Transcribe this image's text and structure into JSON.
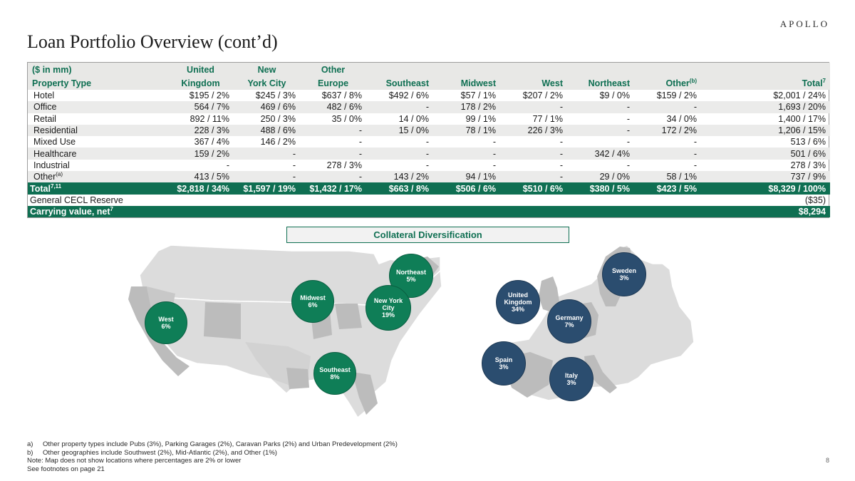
{
  "header": {
    "brand": "APOLLO",
    "title": "Loan Portfolio Overview (cont’d)"
  },
  "table": {
    "headers_top": [
      "($ in mm)",
      "United",
      "New",
      "Other",
      "",
      "",
      "",
      "",
      "",
      ""
    ],
    "headers_bottom": [
      "Property Type",
      "Kingdom",
      "York City",
      "Europe",
      "Southeast",
      "Midwest",
      "West",
      "Northeast",
      "Other",
      "Total"
    ],
    "header_other_sup": "(b)",
    "header_total_sup": "7",
    "rows": [
      {
        "label": "Hotel",
        "sup": "",
        "cells": [
          "$195  / 2%",
          "$245  / 3%",
          "$637  / 8%",
          "$492  / 6%",
          "$57  / 1%",
          "$207  / 2%",
          "$9  / 0%",
          "$159  / 2%",
          "$2,001  / 24%"
        ]
      },
      {
        "label": "Office",
        "sup": "",
        "cells": [
          "564  / 7%",
          "469  / 6%",
          "482  / 6%",
          "-",
          "178  / 2%",
          "-",
          "-",
          "-",
          "1,693  / 20%"
        ]
      },
      {
        "label": "Retail",
        "sup": "",
        "cells": [
          "892  / 11%",
          "250  / 3%",
          "35  / 0%",
          "14  / 0%",
          "99  / 1%",
          "77  / 1%",
          "-",
          "34  / 0%",
          "1,400  / 17%"
        ]
      },
      {
        "label": "Residential",
        "sup": "",
        "cells": [
          "228  / 3%",
          "488  / 6%",
          "-",
          "15  / 0%",
          "78  / 1%",
          "226  / 3%",
          "-",
          "172  / 2%",
          "1,206  / 15%"
        ]
      },
      {
        "label": "Mixed Use",
        "sup": "",
        "cells": [
          "367  / 4%",
          "146  / 2%",
          "-",
          "-",
          "-",
          "-",
          "-",
          "-",
          "513  / 6%"
        ]
      },
      {
        "label": "Healthcare",
        "sup": "",
        "cells": [
          "159  / 2%",
          "-",
          "-",
          "-",
          "-",
          "-",
          "342  / 4%",
          "-",
          "501  / 6%"
        ]
      },
      {
        "label": "Industrial",
        "sup": "",
        "cells": [
          "-",
          "-",
          "278  / 3%",
          "-",
          "-",
          "-",
          "-",
          "-",
          "278  / 3%"
        ]
      },
      {
        "label": "Other",
        "sup": "(a)",
        "cells": [
          "413  / 5%",
          "-",
          "-",
          "143  / 2%",
          "94  / 1%",
          "-",
          "29  / 0%",
          "58  / 1%",
          "737  / 9%"
        ]
      }
    ],
    "total": {
      "label": "Total",
      "sup": "7,11",
      "cells": [
        "$2,818 / 34%",
        "$1,597 / 19%",
        "$1,432 / 17%",
        "$663 / 8%",
        "$506 / 6%",
        "$510 / 6%",
        "$380 / 5%",
        "$423 / 5%",
        "$8,329 / 100%"
      ]
    },
    "cecl": {
      "label": "General CECL Reserve",
      "value": "($35)"
    },
    "carrying": {
      "label": "Carrying value, net",
      "sup": "7",
      "value": "$8,294"
    }
  },
  "collateral_title": "Collateral Diversification",
  "us_bubbles": [
    {
      "name": "West",
      "pct": "6%"
    },
    {
      "name": "Midwest",
      "pct": "6%"
    },
    {
      "name": "Northeast",
      "pct": "5%"
    },
    {
      "name": "New York City",
      "pct": "19%"
    },
    {
      "name": "Southeast",
      "pct": "8%"
    }
  ],
  "eu_bubbles": [
    {
      "name": "United Kingdom",
      "pct": "34%"
    },
    {
      "name": "Sweden",
      "pct": "3%"
    },
    {
      "name": "Germany",
      "pct": "7%"
    },
    {
      "name": "Spain",
      "pct": "3%"
    },
    {
      "name": "Italy",
      "pct": "3%"
    }
  ],
  "footnotes": {
    "a_label": "a)",
    "a": "Other property types include Pubs (3%), Parking Garages (2%), Caravan Parks (2%) and Urban Predevelopment (2%)",
    "b_label": "b)",
    "b": "Other geographies include Southwest (2%), Mid-Atlantic (2%), and Other (1%)",
    "note": "Note: Map does not show locations where percentages are 2% or lower",
    "see": "See footnotes on page 21"
  },
  "page_number": "8",
  "colors": {
    "green": "#0f6f52",
    "us_bubble": "#0f7e57",
    "eu_bubble": "#2b4d6f",
    "map_light": "#dcdcdc",
    "map_dark": "#bcbcbc"
  }
}
